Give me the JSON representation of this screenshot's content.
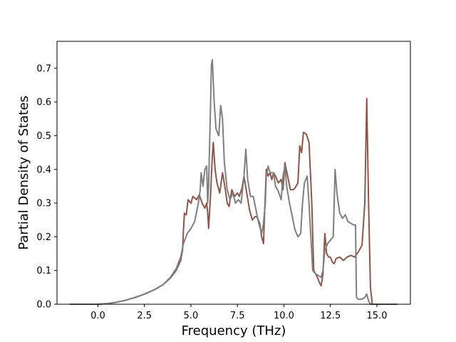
{
  "chart_data": {
    "type": "line",
    "title": "",
    "xlabel": "Frequency (THz)",
    "ylabel": "Partial Density of States",
    "xlim": [
      -2.2,
      16.8
    ],
    "ylim": [
      0.0,
      0.78
    ],
    "x_ticks": [
      0.0,
      2.5,
      5.0,
      7.5,
      10.0,
      12.5,
      15.0
    ],
    "x_tick_labels": [
      "0.0",
      "2.5",
      "5.0",
      "7.5",
      "10.0",
      "12.5",
      "15.0"
    ],
    "y_ticks": [
      0.0,
      0.1,
      0.2,
      0.3,
      0.4,
      0.5,
      0.6,
      0.7
    ],
    "y_tick_labels": [
      "0.0",
      "0.1",
      "0.2",
      "0.3",
      "0.4",
      "0.5",
      "0.6",
      "0.7"
    ],
    "grid": false,
    "legend": "none",
    "series": [
      {
        "color": "#8c564b",
        "points": [
          [
            -1.5,
            0.0
          ],
          [
            0.0,
            0.0
          ],
          [
            0.5,
            0.002
          ],
          [
            1.0,
            0.006
          ],
          [
            1.5,
            0.012
          ],
          [
            2.0,
            0.02
          ],
          [
            2.5,
            0.03
          ],
          [
            3.0,
            0.042
          ],
          [
            3.5,
            0.058
          ],
          [
            3.9,
            0.078
          ],
          [
            4.2,
            0.1
          ],
          [
            4.45,
            0.13
          ],
          [
            4.55,
            0.16
          ],
          [
            4.6,
            0.22
          ],
          [
            4.65,
            0.27
          ],
          [
            4.75,
            0.265
          ],
          [
            4.85,
            0.31
          ],
          [
            5.0,
            0.3
          ],
          [
            5.1,
            0.32
          ],
          [
            5.3,
            0.31
          ],
          [
            5.45,
            0.325
          ],
          [
            5.6,
            0.3
          ],
          [
            5.75,
            0.285
          ],
          [
            5.85,
            0.3
          ],
          [
            5.9,
            0.27
          ],
          [
            5.95,
            0.225
          ],
          [
            6.05,
            0.32
          ],
          [
            6.15,
            0.44
          ],
          [
            6.2,
            0.48
          ],
          [
            6.3,
            0.4
          ],
          [
            6.4,
            0.36
          ],
          [
            6.55,
            0.33
          ],
          [
            6.7,
            0.39
          ],
          [
            6.85,
            0.34
          ],
          [
            6.95,
            0.3
          ],
          [
            7.05,
            0.29
          ],
          [
            7.2,
            0.34
          ],
          [
            7.35,
            0.32
          ],
          [
            7.5,
            0.33
          ],
          [
            7.6,
            0.32
          ],
          [
            7.75,
            0.345
          ],
          [
            7.85,
            0.38
          ],
          [
            8.0,
            0.33
          ],
          [
            8.15,
            0.28
          ],
          [
            8.3,
            0.25
          ],
          [
            8.45,
            0.26
          ],
          [
            8.55,
            0.26
          ],
          [
            8.7,
            0.24
          ],
          [
            8.8,
            0.2
          ],
          [
            8.9,
            0.18
          ],
          [
            9.05,
            0.4
          ],
          [
            9.15,
            0.38
          ],
          [
            9.25,
            0.39
          ],
          [
            9.35,
            0.37
          ],
          [
            9.45,
            0.39
          ],
          [
            9.55,
            0.38
          ],
          [
            9.7,
            0.36
          ],
          [
            9.85,
            0.37
          ],
          [
            9.95,
            0.34
          ],
          [
            10.05,
            0.42
          ],
          [
            10.2,
            0.38
          ],
          [
            10.35,
            0.34
          ],
          [
            10.5,
            0.34
          ],
          [
            10.6,
            0.345
          ],
          [
            10.75,
            0.36
          ],
          [
            10.85,
            0.47
          ],
          [
            10.95,
            0.45
          ],
          [
            11.05,
            0.51
          ],
          [
            11.2,
            0.505
          ],
          [
            11.35,
            0.48
          ],
          [
            11.5,
            0.3
          ],
          [
            11.6,
            0.1
          ],
          [
            11.7,
            0.09
          ],
          [
            11.8,
            0.08
          ],
          [
            11.9,
            0.065
          ],
          [
            12.0,
            0.055
          ],
          [
            12.1,
            0.09
          ],
          [
            12.2,
            0.21
          ],
          [
            12.3,
            0.15
          ],
          [
            12.4,
            0.14
          ],
          [
            12.5,
            0.14
          ],
          [
            12.6,
            0.125
          ],
          [
            12.7,
            0.12
          ],
          [
            12.8,
            0.135
          ],
          [
            13.0,
            0.14
          ],
          [
            13.2,
            0.13
          ],
          [
            13.4,
            0.14
          ],
          [
            13.6,
            0.145
          ],
          [
            13.8,
            0.14
          ],
          [
            14.0,
            0.155
          ],
          [
            14.2,
            0.175
          ],
          [
            14.35,
            0.3
          ],
          [
            14.45,
            0.61
          ],
          [
            14.55,
            0.3
          ],
          [
            14.65,
            0.05
          ],
          [
            14.75,
            0.0
          ],
          [
            16.1,
            0.0
          ]
        ]
      },
      {
        "color": "#7f7f7f",
        "points": [
          [
            -1.5,
            0.0
          ],
          [
            0.0,
            0.0
          ],
          [
            0.5,
            0.002
          ],
          [
            1.0,
            0.006
          ],
          [
            1.5,
            0.012
          ],
          [
            2.0,
            0.02
          ],
          [
            2.5,
            0.03
          ],
          [
            3.0,
            0.042
          ],
          [
            3.5,
            0.058
          ],
          [
            3.9,
            0.08
          ],
          [
            4.2,
            0.105
          ],
          [
            4.45,
            0.14
          ],
          [
            4.6,
            0.18
          ],
          [
            4.8,
            0.21
          ],
          [
            5.0,
            0.225
          ],
          [
            5.2,
            0.245
          ],
          [
            5.4,
            0.3
          ],
          [
            5.5,
            0.34
          ],
          [
            5.55,
            0.39
          ],
          [
            5.65,
            0.35
          ],
          [
            5.75,
            0.4
          ],
          [
            5.85,
            0.41
          ],
          [
            5.9,
            0.3
          ],
          [
            5.95,
            0.35
          ],
          [
            6.05,
            0.58
          ],
          [
            6.1,
            0.71
          ],
          [
            6.15,
            0.725
          ],
          [
            6.25,
            0.6
          ],
          [
            6.35,
            0.52
          ],
          [
            6.5,
            0.5
          ],
          [
            6.6,
            0.59
          ],
          [
            6.7,
            0.55
          ],
          [
            6.8,
            0.42
          ],
          [
            6.95,
            0.34
          ],
          [
            7.1,
            0.31
          ],
          [
            7.25,
            0.33
          ],
          [
            7.4,
            0.3
          ],
          [
            7.55,
            0.31
          ],
          [
            7.7,
            0.3
          ],
          [
            7.85,
            0.38
          ],
          [
            7.95,
            0.46
          ],
          [
            8.05,
            0.37
          ],
          [
            8.2,
            0.32
          ],
          [
            8.35,
            0.32
          ],
          [
            8.5,
            0.28
          ],
          [
            8.65,
            0.24
          ],
          [
            8.8,
            0.21
          ],
          [
            8.9,
            0.24
          ],
          [
            9.0,
            0.3
          ],
          [
            9.05,
            0.38
          ],
          [
            9.15,
            0.41
          ],
          [
            9.25,
            0.39
          ],
          [
            9.45,
            0.39
          ],
          [
            9.55,
            0.35
          ],
          [
            9.7,
            0.335
          ],
          [
            9.85,
            0.31
          ],
          [
            9.95,
            0.38
          ],
          [
            10.05,
            0.41
          ],
          [
            10.15,
            0.35
          ],
          [
            10.3,
            0.3
          ],
          [
            10.45,
            0.26
          ],
          [
            10.6,
            0.22
          ],
          [
            10.75,
            0.2
          ],
          [
            10.9,
            0.21
          ],
          [
            11.0,
            0.3
          ],
          [
            11.1,
            0.36
          ],
          [
            11.25,
            0.38
          ],
          [
            11.35,
            0.3
          ],
          [
            11.45,
            0.2
          ],
          [
            11.55,
            0.1
          ],
          [
            11.7,
            0.09
          ],
          [
            11.85,
            0.085
          ],
          [
            12.0,
            0.08
          ],
          [
            12.1,
            0.1
          ],
          [
            12.2,
            0.16
          ],
          [
            12.35,
            0.18
          ],
          [
            12.5,
            0.19
          ],
          [
            12.65,
            0.2
          ],
          [
            12.75,
            0.4
          ],
          [
            12.85,
            0.33
          ],
          [
            13.0,
            0.27
          ],
          [
            13.15,
            0.255
          ],
          [
            13.3,
            0.265
          ],
          [
            13.45,
            0.245
          ],
          [
            13.6,
            0.24
          ],
          [
            13.75,
            0.235
          ],
          [
            13.85,
            0.235
          ],
          [
            13.9,
            0.02
          ],
          [
            14.0,
            0.015
          ],
          [
            14.2,
            0.015
          ],
          [
            14.35,
            0.02
          ],
          [
            14.45,
            0.03
          ],
          [
            14.55,
            0.01
          ],
          [
            14.65,
            0.0
          ],
          [
            16.1,
            0.0
          ]
        ]
      }
    ]
  }
}
